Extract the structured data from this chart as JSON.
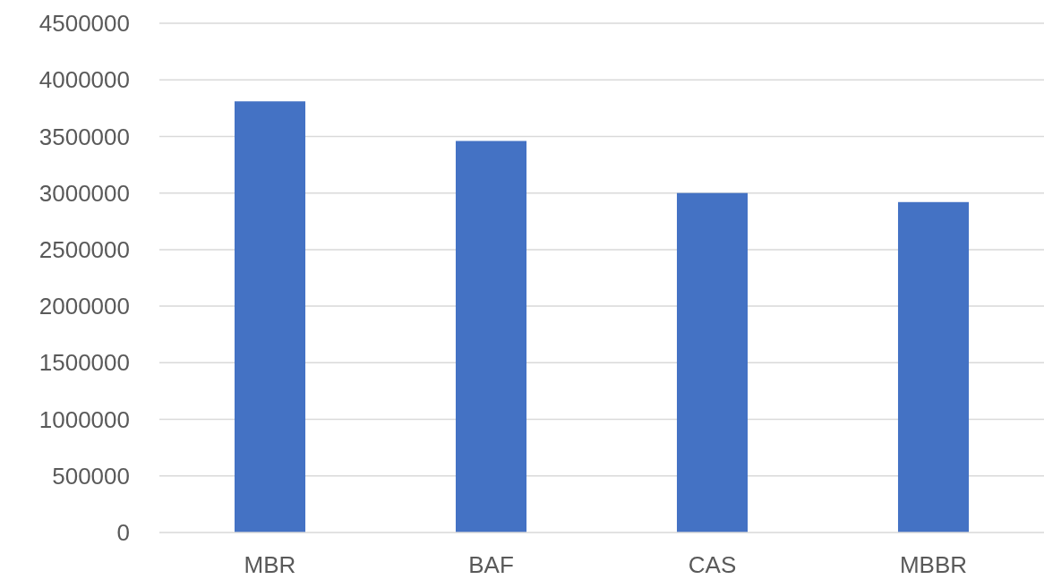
{
  "chart_data": {
    "type": "bar",
    "categories": [
      "MBR",
      "BAF",
      "CAS",
      "MBBR"
    ],
    "values": [
      3810000,
      3460000,
      3000000,
      2920000
    ],
    "color": "#4472c4",
    "ylim": [
      0,
      4500000
    ],
    "yticks": [
      0,
      500000,
      1000000,
      1500000,
      2000000,
      2500000,
      3000000,
      3500000,
      4000000,
      4500000
    ],
    "grid": "y"
  }
}
